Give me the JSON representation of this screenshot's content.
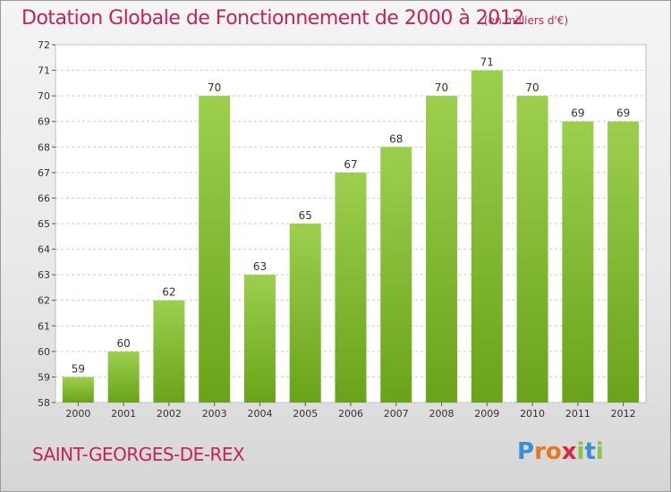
{
  "header": {
    "title": "Dotation Globale de Fonctionnement de 2000 à 2012",
    "subtitle": "(en milliers d'€)"
  },
  "footer": {
    "commune": "SAINT-GEORGES-DE-REX",
    "logo_text": "Proxiti",
    "logo_colors": [
      "#3a8fd6",
      "#e87722",
      "#e87722",
      "#d9263a",
      "#8bc34a",
      "#3a8fd6",
      "#8bc34a"
    ]
  },
  "chart_data": {
    "type": "bar",
    "categories": [
      "2000",
      "2001",
      "2002",
      "2003",
      "2004",
      "2005",
      "2006",
      "2007",
      "2008",
      "2009",
      "2010",
      "2011",
      "2012"
    ],
    "values": [
      59,
      60,
      62,
      70,
      63,
      65,
      67,
      68,
      70,
      71,
      70,
      69,
      69
    ],
    "ylim": [
      58,
      72
    ],
    "yticks": [
      58,
      59,
      60,
      61,
      62,
      63,
      64,
      65,
      66,
      67,
      68,
      69,
      70,
      71,
      72
    ],
    "grid": true,
    "bar_color_top": "#9ccf4e",
    "bar_color_bottom": "#6aa319",
    "grid_color": "#c9c9c9"
  }
}
